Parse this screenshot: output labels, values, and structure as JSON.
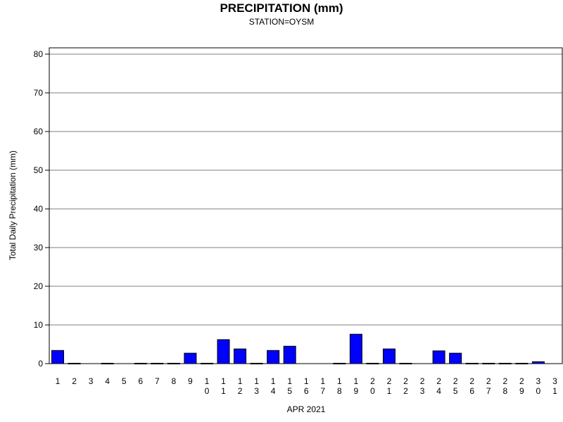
{
  "chart_data": {
    "type": "bar",
    "title": "PRECIPITATION (mm)",
    "subtitle": "STATION=OYSM",
    "xlabel": "APR 2021",
    "ylabel": "Total Daily Precipitation (mm)",
    "ylim": [
      0,
      80
    ],
    "yticks": [
      0,
      10,
      20,
      30,
      40,
      50,
      60,
      70,
      80
    ],
    "grid": true,
    "bar_color": "#0000ff",
    "categories": [
      "1",
      "2",
      "3",
      "4",
      "5",
      "6",
      "7",
      "8",
      "9",
      "10",
      "11",
      "12",
      "13",
      "14",
      "15",
      "16",
      "17",
      "18",
      "19",
      "20",
      "21",
      "22",
      "23",
      "24",
      "25",
      "26",
      "27",
      "28",
      "29",
      "30",
      "31"
    ],
    "values": [
      3.4,
      0.1,
      null,
      0.1,
      null,
      0.1,
      0.1,
      0.1,
      2.7,
      0.1,
      6.2,
      3.8,
      0.1,
      3.4,
      4.5,
      null,
      null,
      0.1,
      7.6,
      0.1,
      3.8,
      0.1,
      null,
      3.3,
      2.7,
      0.1,
      0.1,
      0.1,
      0.1,
      0.5,
      null
    ]
  }
}
